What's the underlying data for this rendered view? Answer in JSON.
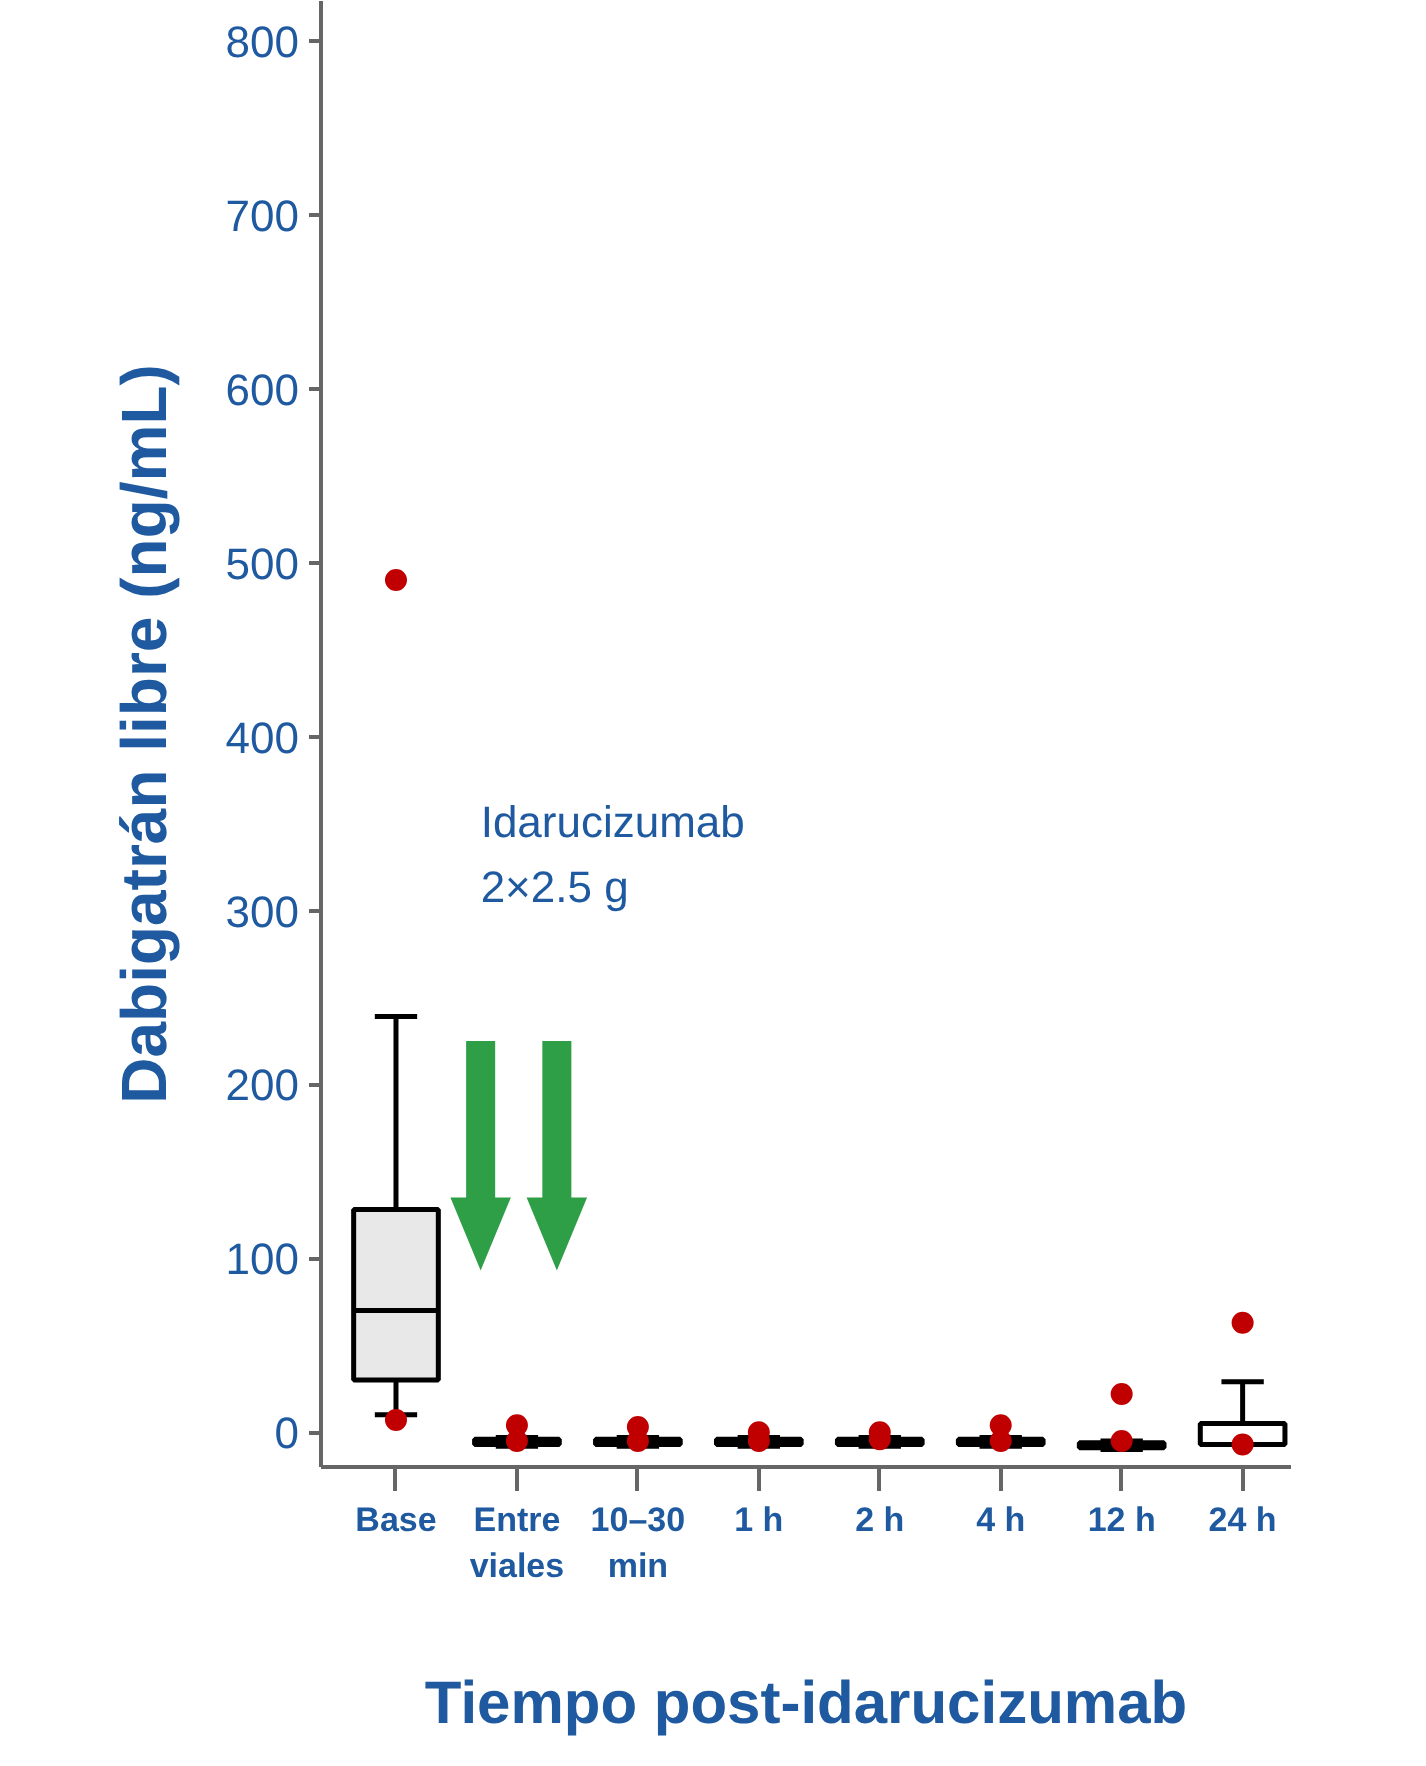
{
  "chart_data": {
    "type": "box",
    "ylabel": "Dabigatrán libre (ng/mL)",
    "xlabel": "Tiempo post-idarucizumab",
    "categories": [
      "Base",
      "Entre\nviales",
      "10–30\nmin",
      "1 h",
      "2 h",
      "4 h",
      "12 h",
      "24 h"
    ],
    "boxes": [
      {
        "low": 10,
        "q1": 30,
        "median": 70,
        "q3": 128,
        "high": 239
      },
      {
        "low": -8,
        "q1": -7,
        "median": -6,
        "q3": -4,
        "high": -3
      },
      {
        "low": -8,
        "q1": -7,
        "median": -6,
        "q3": -4,
        "high": -3
      },
      {
        "low": -8,
        "q1": -7,
        "median": -6,
        "q3": -4,
        "high": -3
      },
      {
        "low": -8,
        "q1": -7,
        "median": -6,
        "q3": -4,
        "high": -3
      },
      {
        "low": -8,
        "q1": -7,
        "median": -6,
        "q3": -4,
        "high": -3
      },
      {
        "low": -10,
        "q1": -9,
        "median": -8,
        "q3": -6,
        "high": -5
      },
      {
        "low": -7,
        "q1": -7,
        "median": -7,
        "q3": 5,
        "high": 29
      }
    ],
    "colors": [
      "#e8e8e8",
      "#ffffff",
      "#ffffff",
      "#ffffff",
      "#ffffff",
      "#ffffff",
      "#ffffff",
      "#ffffff"
    ],
    "series": [
      {
        "type": "scatter",
        "color": "#c00000",
        "x": [
          "Base",
          "Base",
          "Entre\nviales",
          "Entre\nviales",
          "10–30\nmin",
          "10–30\nmin",
          "1 h",
          "1 h",
          "2 h",
          "2 h",
          "4 h",
          "4 h",
          "12 h",
          "12 h",
          "24 h",
          "24 h"
        ],
        "values": [
          7,
          490,
          4,
          -5,
          3,
          -5,
          0,
          -5,
          0,
          -4,
          4,
          -5,
          22,
          -5,
          63,
          -7
        ]
      }
    ],
    "ylim": [
      -20,
      823
    ],
    "yticks": [
      0,
      100,
      200,
      300,
      400,
      500,
      600,
      700,
      800
    ],
    "annotations": [
      "Idarucizumab\n2×2.5 g"
    ],
    "grid": false
  }
}
